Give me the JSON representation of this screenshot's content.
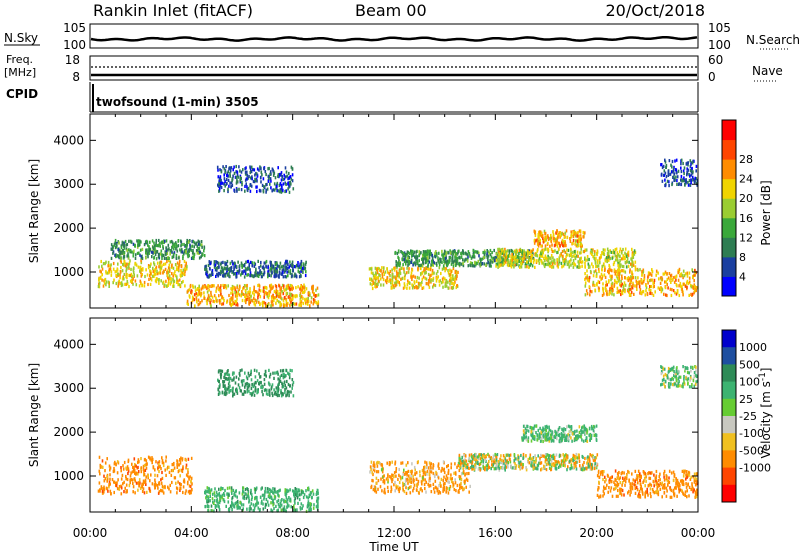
{
  "header": {
    "station": "Rankin Inlet (fitACF)",
    "beam": "Beam 00",
    "date": "20/Oct/2018"
  },
  "top_panels": {
    "nsky_label": "N.Sky",
    "nsearch_label": "N.Search",
    "freq_label_1": "Freq.",
    "freq_label_2": "[MHz]",
    "nave_label": "Nave",
    "cpid_label": "CPID",
    "noise_tick_hi": "10^5",
    "noise_tick_lo": "10^0",
    "freq_tick_hi": "18",
    "freq_tick_lo": "8",
    "nave_tick_hi": "60",
    "nave_tick_lo": "0",
    "cpid_text": "twofsound (1-min) 3505"
  },
  "colors": {
    "power_scale": [
      "#0000ff",
      "#1a3fa0",
      "#2e7d52",
      "#3aa83a",
      "#9acd32",
      "#f0d400",
      "#ff8c00",
      "#ff4500",
      "#ff0000"
    ],
    "velocity_scale": [
      "#0000cc",
      "#1e4fa0",
      "#2e8b57",
      "#3cb371",
      "#66cc33",
      "#c8c8c0",
      "#f0c020",
      "#ff8c00",
      "#ff4500",
      "#ff0000"
    ]
  },
  "chart_data": [
    {
      "type": "heatmap",
      "title": "",
      "xlabel": "",
      "ylabel": "Slant Range [km]",
      "x_ticks": [
        "00:00",
        "04:00",
        "08:00",
        "12:00",
        "16:00",
        "20:00",
        "00:00"
      ],
      "y_ticks": [
        1000,
        2000,
        3000,
        4000
      ],
      "xlim_hours": [
        0,
        24
      ],
      "ylim_km": [
        180,
        4600
      ],
      "colorbar": {
        "label": "Power [dB]",
        "ticks": [
          "4",
          "8",
          "12",
          "16",
          "20",
          "24",
          "28"
        ]
      },
      "regions": [
        {
          "start_h": 0.3,
          "end_h": 3.8,
          "center_km": 1000,
          "width_km": 500,
          "value_db": 22
        },
        {
          "start_h": 0.8,
          "end_h": 4.5,
          "center_km": 1550,
          "width_km": 350,
          "value_db": 12
        },
        {
          "start_h": 3.8,
          "end_h": 9.0,
          "center_km": 500,
          "width_km": 400,
          "value_db": 24
        },
        {
          "start_h": 4.5,
          "end_h": 8.5,
          "center_km": 1100,
          "width_km": 300,
          "value_db": 8
        },
        {
          "start_h": 5.0,
          "end_h": 8.0,
          "center_km": 3150,
          "width_km": 500,
          "value_db": 6
        },
        {
          "start_h": 11.0,
          "end_h": 14.5,
          "center_km": 900,
          "width_km": 400,
          "value_db": 22
        },
        {
          "start_h": 12.0,
          "end_h": 17.5,
          "center_km": 1350,
          "width_km": 300,
          "value_db": 12
        },
        {
          "start_h": 16.0,
          "end_h": 21.5,
          "center_km": 1350,
          "width_km": 350,
          "value_db": 20
        },
        {
          "start_h": 17.5,
          "end_h": 19.5,
          "center_km": 1800,
          "width_km": 300,
          "value_db": 24
        },
        {
          "start_h": 19.5,
          "end_h": 24.0,
          "center_km": 800,
          "width_km": 500,
          "value_db": 24
        },
        {
          "start_h": 22.5,
          "end_h": 24.0,
          "center_km": 3300,
          "width_km": 500,
          "value_db": 6
        }
      ]
    },
    {
      "type": "heatmap",
      "title": "",
      "xlabel": "Time UT",
      "ylabel": "Slant Range [km]",
      "x_ticks": [
        "00:00",
        "04:00",
        "08:00",
        "12:00",
        "16:00",
        "20:00",
        "00:00"
      ],
      "y_ticks": [
        1000,
        2000,
        3000,
        4000
      ],
      "xlim_hours": [
        0,
        24
      ],
      "ylim_km": [
        180,
        4600
      ],
      "colorbar": {
        "label": "Velocity [m s^-1]",
        "ticks": [
          "1000",
          "500",
          "100",
          "25",
          "-25",
          "-100",
          "-500",
          "-1000"
        ]
      },
      "regions": [
        {
          "start_h": 0.3,
          "end_h": 4.0,
          "center_km": 1050,
          "width_km": 700,
          "value_ms": -300
        },
        {
          "start_h": 4.5,
          "end_h": 9.0,
          "center_km": 500,
          "width_km": 450,
          "value_ms": 300
        },
        {
          "start_h": 5.0,
          "end_h": 8.0,
          "center_km": 3150,
          "width_km": 500,
          "value_ms": 600
        },
        {
          "start_h": 11.0,
          "end_h": 15.0,
          "center_km": 1000,
          "width_km": 600,
          "value_ms": -200
        },
        {
          "start_h": 14.5,
          "end_h": 20.0,
          "center_km": 1350,
          "width_km": 300,
          "value_ms": 0
        },
        {
          "start_h": 17.0,
          "end_h": 20.0,
          "center_km": 2000,
          "width_km": 300,
          "value_ms": 200
        },
        {
          "start_h": 20.0,
          "end_h": 24.0,
          "center_km": 850,
          "width_km": 500,
          "value_ms": -300
        },
        {
          "start_h": 22.5,
          "end_h": 24.0,
          "center_km": 3300,
          "width_km": 400,
          "value_ms": 150
        }
      ]
    }
  ]
}
